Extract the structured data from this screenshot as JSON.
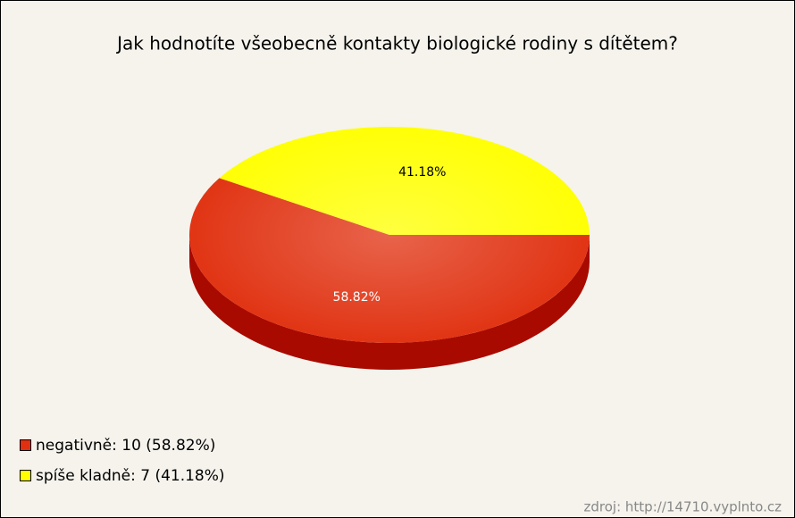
{
  "chart_data": {
    "type": "pie3d",
    "title": "Jak hodnotíte všeobecně kontakty biologické rodiny s dítětem?",
    "values": [
      58.82,
      41.18
    ],
    "value_labels": [
      "58.82%",
      "41.18%"
    ],
    "legend": [
      "negativně: 10 (58.82%)",
      "spíše kladně: 7 (41.18%)"
    ],
    "colors": [
      "#e0300f",
      "#ffff00"
    ],
    "side_colors": [
      "#a80a00",
      "#c8c000"
    ],
    "label_colors": [
      "#ffffff",
      "#000000"
    ],
    "source": "zdroj: http://14710.vyplnto.cz"
  }
}
